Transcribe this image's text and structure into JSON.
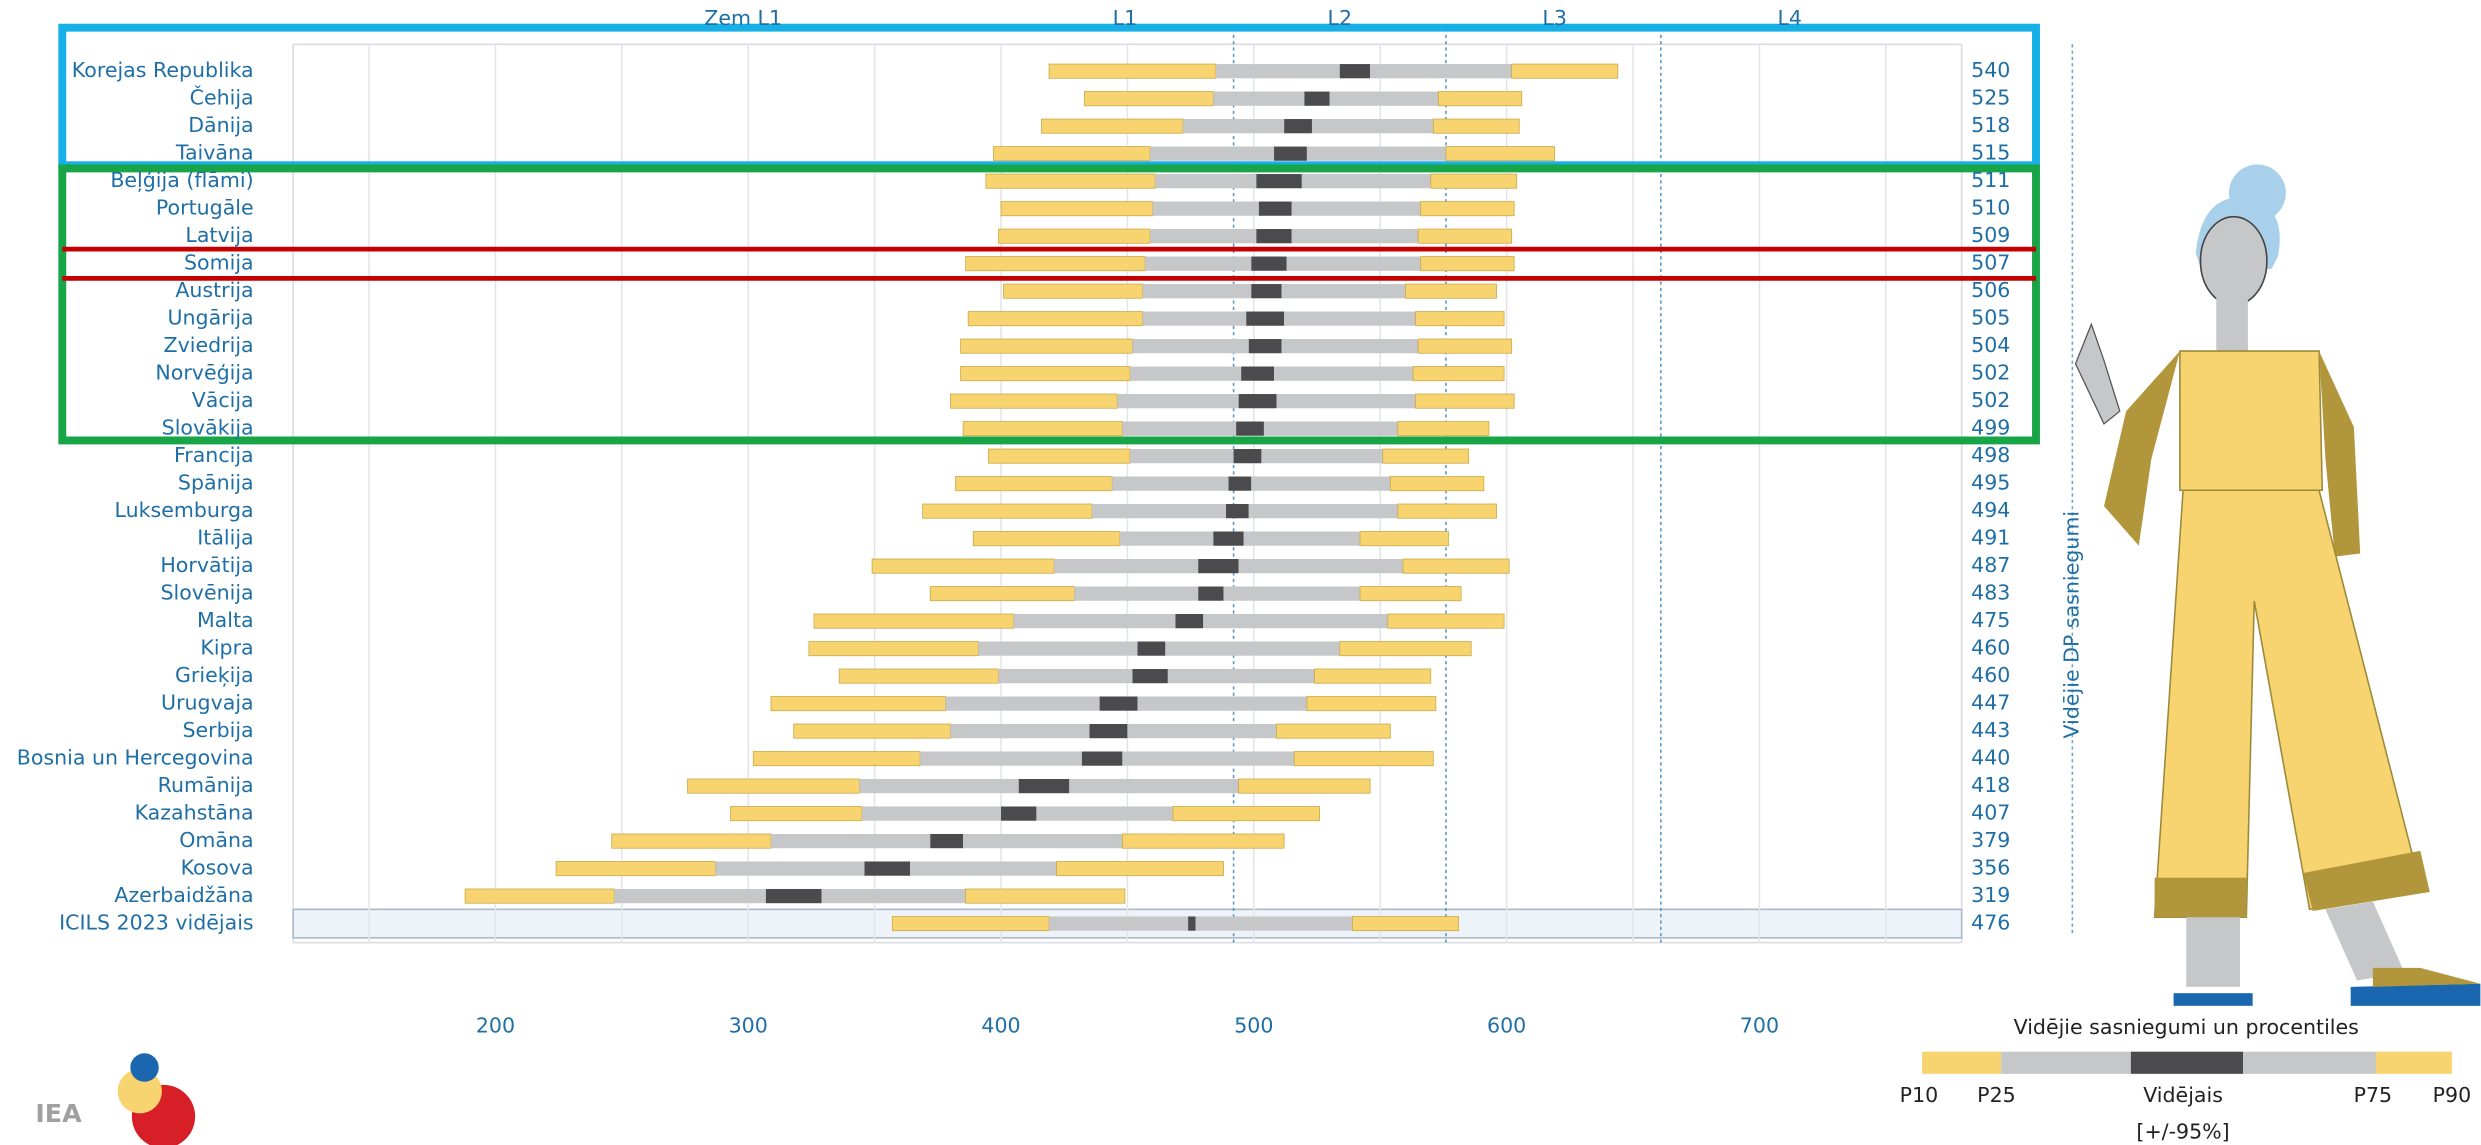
{
  "chart_data": {
    "type": "percentile_bar",
    "categories": [
      "Korejas Republika",
      "Čehija",
      "Dānija",
      "Taivāna",
      "Beļģija (flāmi)",
      "Portugāle",
      "Latvija",
      "Somija",
      "Austrija",
      "Ungārija",
      "Zviedrija",
      "Norvēģija",
      "Vācija",
      "Slovākija",
      "Francija",
      "Spānija",
      "Luksemburga",
      "Itālija",
      "Horvātija",
      "Slovēnija",
      "Malta",
      "Kipra",
      "Grieķija",
      "Urugvaja",
      "Serbija",
      "Bosnia un Hercegovina",
      "Rumānija",
      "Kazahstāna",
      "Omāna",
      "Kosova",
      "Azerbaidžāna",
      "ICILS 2023 vidējais"
    ],
    "means": [
      540,
      525,
      518,
      515,
      511,
      510,
      509,
      507,
      506,
      505,
      504,
      502,
      502,
      499,
      498,
      495,
      494,
      491,
      487,
      483,
      475,
      460,
      460,
      447,
      443,
      440,
      418,
      407,
      379,
      356,
      319,
      476
    ],
    "p10": [
      419,
      433,
      416,
      397,
      394,
      400,
      399,
      386,
      401,
      387,
      384,
      384,
      380,
      385,
      395,
      382,
      369,
      389,
      349,
      372,
      326,
      324,
      336,
      309,
      318,
      302,
      276,
      293,
      246,
      224,
      188,
      357
    ],
    "p25": [
      485,
      484,
      472,
      459,
      461,
      460,
      459,
      457,
      456,
      456,
      452,
      451,
      446,
      448,
      451,
      444,
      436,
      447,
      421,
      429,
      405,
      391,
      399,
      378,
      380,
      368,
      344,
      345,
      309,
      287,
      247,
      419
    ],
    "ci_low": [
      534,
      520,
      512,
      508,
      501,
      502,
      501,
      499,
      499,
      497,
      498,
      495,
      494,
      493,
      492,
      490,
      489,
      484,
      478,
      478,
      469,
      454,
      452,
      439,
      435,
      432,
      407,
      400,
      372,
      346,
      307,
      474
    ],
    "ci_high": [
      546,
      530,
      523,
      521,
      519,
      515,
      515,
      513,
      511,
      512,
      511,
      508,
      509,
      504,
      503,
      499,
      498,
      496,
      494,
      488,
      480,
      465,
      466,
      454,
      450,
      448,
      427,
      414,
      385,
      364,
      329,
      477
    ],
    "p75": [
      602,
      573,
      571,
      576,
      570,
      566,
      565,
      566,
      560,
      564,
      565,
      563,
      564,
      557,
      551,
      554,
      557,
      542,
      559,
      542,
      553,
      534,
      524,
      521,
      509,
      516,
      494,
      468,
      448,
      422,
      386,
      539
    ],
    "p90": [
      644,
      606,
      605,
      619,
      604,
      603,
      602,
      603,
      596,
      599,
      602,
      599,
      603,
      593,
      585,
      591,
      596,
      577,
      601,
      582,
      599,
      586,
      570,
      572,
      554,
      571,
      546,
      526,
      512,
      488,
      449,
      581
    ],
    "colors": {
      "outer": "#f7d46f",
      "inner": "#c6c7c9",
      "ci": "#4b4b4d",
      "text": "#1f6fa6"
    },
    "xlim": [
      120,
      780
    ],
    "xticks": [
      200,
      300,
      400,
      500,
      600,
      700
    ],
    "minor_xticks": [
      150,
      250,
      350,
      450,
      550,
      650,
      750
    ],
    "grid": true,
    "level_lines": [
      492,
      576,
      661
    ],
    "levels": [
      {
        "label": "Zem L1",
        "value": 298
      },
      {
        "label": "L1",
        "value": 449
      },
      {
        "label": "L2",
        "value": 534
      },
      {
        "label": "L3",
        "value": 619
      },
      {
        "label": "L4",
        "value": 712
      }
    ],
    "mean_label": "Vidējie DP sasniegumi",
    "legend": {
      "title": "Vidējie sasniegumi un procentiles",
      "labels": [
        "P10",
        "P25",
        "Vidējais",
        "P75",
        "P90"
      ],
      "note": "[+/-95%]"
    },
    "logo_text": "IEA"
  }
}
